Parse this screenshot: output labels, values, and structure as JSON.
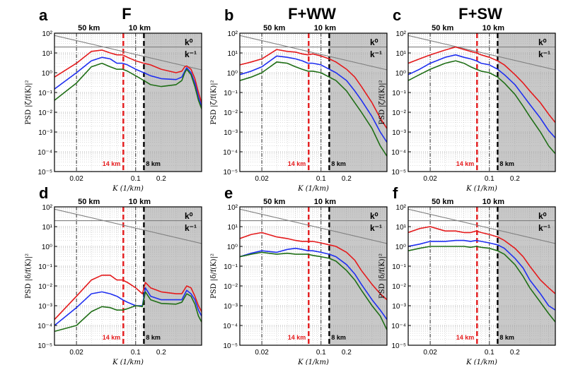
{
  "figure": {
    "colors": {
      "red": "#e41a1c",
      "blue": "#1f2ff0",
      "green": "#1f6e16",
      "ref": "#808080",
      "shade": "#c8c8c8"
    }
  },
  "chart_data": [
    {
      "type": "line",
      "panel": "a",
      "title": "F",
      "xlabel": "K (1/km)",
      "ylabel": "PSD |ζ/f(K)|²",
      "xscale": "log",
      "yscale": "log",
      "xlim": [
        0.011,
        0.6
      ],
      "ylim": [
        1e-05,
        100
      ],
      "xticks": [
        "0.02",
        "0.1",
        "0.2"
      ],
      "yticks": [
        "10⁻⁵",
        "10⁻⁴",
        "10⁻³",
        "10⁻²",
        "10⁻¹",
        "10⁰",
        "10¹",
        "10²"
      ],
      "top_labels": [
        "50 km",
        "10 km"
      ],
      "mark_labels": [
        "14 km",
        "8 km"
      ],
      "legend": [
        "k⁰",
        "k⁻¹"
      ],
      "shaded_from": 0.125,
      "series": [
        {
          "color": "red",
          "x": [
            0.011,
            0.02,
            0.03,
            0.04,
            0.05,
            0.06,
            0.07,
            0.08,
            0.1,
            0.125,
            0.15,
            0.2,
            0.3,
            0.35,
            0.38,
            0.4,
            0.45,
            0.5,
            0.55,
            0.6
          ],
          "y": [
            0.6,
            3,
            12,
            14,
            10,
            8,
            8,
            6,
            4,
            3,
            2.5,
            1.5,
            1.0,
            1.2,
            2.0,
            2.2,
            1.5,
            0.5,
            0.1,
            0.03
          ]
        },
        {
          "color": "blue",
          "x": [
            0.011,
            0.02,
            0.03,
            0.04,
            0.05,
            0.06,
            0.07,
            0.08,
            0.1,
            0.125,
            0.15,
            0.2,
            0.3,
            0.35,
            0.38,
            0.4,
            0.45,
            0.5,
            0.55,
            0.6
          ],
          "y": [
            0.15,
            1.0,
            4,
            6,
            5,
            3,
            3,
            2.5,
            1.5,
            1.0,
            0.7,
            0.5,
            0.45,
            0.6,
            1.2,
            1.8,
            1.0,
            0.3,
            0.06,
            0.02
          ]
        },
        {
          "color": "green",
          "x": [
            0.011,
            0.02,
            0.03,
            0.04,
            0.05,
            0.06,
            0.07,
            0.08,
            0.1,
            0.125,
            0.15,
            0.2,
            0.3,
            0.35,
            0.38,
            0.4,
            0.45,
            0.5,
            0.55,
            0.6
          ],
          "y": [
            0.04,
            0.3,
            2,
            3,
            2,
            1.5,
            1.5,
            1.2,
            0.7,
            0.4,
            0.25,
            0.2,
            0.25,
            0.4,
            1.0,
            1.5,
            0.8,
            0.2,
            0.04,
            0.015
          ]
        }
      ]
    },
    {
      "type": "line",
      "panel": "b",
      "title": "F+WW",
      "xlabel": "K (1/km)",
      "ylabel": "PSD |ζ/f(K)|²",
      "xscale": "log",
      "yscale": "log",
      "xlim": [
        0.011,
        0.6
      ],
      "ylim": [
        1e-05,
        100
      ],
      "xticks": [
        "0.02",
        "0.1",
        "0.2"
      ],
      "yticks": [
        "10⁻⁵",
        "10⁻⁴",
        "10⁻³",
        "10⁻²",
        "10⁻¹",
        "10⁰",
        "10¹",
        "10²"
      ],
      "top_labels": [
        "50 km",
        "10 km"
      ],
      "mark_labels": [
        "14 km",
        "8 km"
      ],
      "legend": [
        "k⁰",
        "k⁻¹"
      ],
      "shaded_from": 0.125,
      "series": [
        {
          "color": "red",
          "x": [
            0.011,
            0.015,
            0.02,
            0.03,
            0.04,
            0.05,
            0.06,
            0.07,
            0.08,
            0.1,
            0.125,
            0.15,
            0.2,
            0.25,
            0.3,
            0.4,
            0.5,
            0.6
          ],
          "y": [
            2.5,
            3.5,
            5,
            15,
            12,
            11,
            9,
            8,
            9,
            7,
            5,
            3.5,
            1.5,
            0.6,
            0.2,
            0.03,
            0.005,
            0.0015
          ]
        },
        {
          "color": "blue",
          "x": [
            0.011,
            0.015,
            0.02,
            0.03,
            0.04,
            0.05,
            0.06,
            0.07,
            0.08,
            0.1,
            0.125,
            0.15,
            0.2,
            0.25,
            0.3,
            0.4,
            0.5,
            0.6
          ],
          "y": [
            0.8,
            1.2,
            2,
            7,
            6,
            5,
            4,
            3,
            3,
            2.5,
            1.5,
            1.0,
            0.4,
            0.12,
            0.04,
            0.006,
            0.001,
            0.0003
          ]
        },
        {
          "color": "green",
          "x": [
            0.011,
            0.015,
            0.02,
            0.03,
            0.04,
            0.05,
            0.06,
            0.07,
            0.08,
            0.1,
            0.125,
            0.15,
            0.2,
            0.25,
            0.3,
            0.4,
            0.5,
            0.6
          ],
          "y": [
            0.4,
            0.6,
            1.0,
            3.5,
            3,
            2,
            1.5,
            1.2,
            1.2,
            1.0,
            0.6,
            0.4,
            0.12,
            0.03,
            0.01,
            0.0015,
            0.0002,
            6e-05
          ]
        }
      ]
    },
    {
      "type": "line",
      "panel": "c",
      "title": "F+SW",
      "xlabel": "K (1/km)",
      "ylabel": "PSD |ζ/f(K)|²",
      "xscale": "log",
      "yscale": "log",
      "xlim": [
        0.011,
        0.6
      ],
      "ylim": [
        1e-05,
        100
      ],
      "xticks": [
        "0.02",
        "0.1",
        "0.2"
      ],
      "yticks": [
        "10⁻⁵",
        "10⁻⁴",
        "10⁻³",
        "10⁻²",
        "10⁻¹",
        "10⁰",
        "10¹",
        "10²"
      ],
      "top_labels": [
        "50 km",
        "10 km"
      ],
      "mark_labels": [
        "14 km",
        "8 km"
      ],
      "legend": [
        "k⁰",
        "k⁻¹"
      ],
      "shaded_from": 0.125,
      "series": [
        {
          "color": "red",
          "x": [
            0.011,
            0.015,
            0.02,
            0.03,
            0.04,
            0.05,
            0.06,
            0.07,
            0.08,
            0.1,
            0.125,
            0.15,
            0.2,
            0.25,
            0.3,
            0.4,
            0.5,
            0.6
          ],
          "y": [
            3,
            5,
            8,
            14,
            20,
            15,
            12,
            10,
            8,
            6,
            4,
            2.5,
            0.8,
            0.3,
            0.12,
            0.03,
            0.008,
            0.003
          ]
        },
        {
          "color": "blue",
          "x": [
            0.011,
            0.015,
            0.02,
            0.03,
            0.04,
            0.05,
            0.06,
            0.07,
            0.08,
            0.1,
            0.125,
            0.15,
            0.2,
            0.25,
            0.3,
            0.4,
            0.5,
            0.6
          ],
          "y": [
            0.8,
            1.5,
            3,
            6,
            8,
            6,
            5,
            4,
            3,
            2.5,
            1.5,
            0.8,
            0.25,
            0.07,
            0.025,
            0.005,
            0.0012,
            0.0005
          ]
        },
        {
          "color": "green",
          "x": [
            0.011,
            0.015,
            0.02,
            0.03,
            0.04,
            0.05,
            0.06,
            0.07,
            0.08,
            0.1,
            0.125,
            0.15,
            0.2,
            0.25,
            0.3,
            0.4,
            0.5,
            0.6
          ],
          "y": [
            0.4,
            0.8,
            1.5,
            3,
            4,
            3,
            2,
            1.5,
            1.2,
            1.0,
            0.6,
            0.3,
            0.08,
            0.02,
            0.006,
            0.001,
            0.0002,
            8e-05
          ]
        }
      ]
    },
    {
      "type": "line",
      "panel": "d",
      "title": "",
      "xlabel": "K (1/km)",
      "ylabel": "PSD |δ/f(K)|²",
      "xscale": "log",
      "yscale": "log",
      "xlim": [
        0.011,
        0.6
      ],
      "ylim": [
        1e-05,
        100
      ],
      "xticks": [
        "0.02",
        "0.1",
        "0.2"
      ],
      "yticks": [
        "10⁻⁵",
        "10⁻⁴",
        "10⁻³",
        "10⁻²",
        "10⁻¹",
        "10⁰",
        "10¹",
        "10²"
      ],
      "top_labels": [
        "50 km",
        "10 km"
      ],
      "mark_labels": [
        "14 km",
        "8 km"
      ],
      "legend": [
        "k⁰",
        "k⁻¹"
      ],
      "shaded_from": 0.125,
      "series": [
        {
          "color": "red",
          "x": [
            0.011,
            0.02,
            0.03,
            0.04,
            0.05,
            0.06,
            0.07,
            0.08,
            0.1,
            0.12,
            0.13,
            0.15,
            0.2,
            0.3,
            0.35,
            0.4,
            0.45,
            0.5,
            0.55,
            0.6
          ],
          "y": [
            0.0002,
            0.003,
            0.02,
            0.035,
            0.035,
            0.02,
            0.02,
            0.015,
            0.008,
            0.004,
            0.015,
            0.008,
            0.005,
            0.004,
            0.004,
            0.01,
            0.008,
            0.003,
            0.001,
            0.0005
          ]
        },
        {
          "color": "blue",
          "x": [
            0.011,
            0.02,
            0.03,
            0.04,
            0.05,
            0.06,
            0.07,
            0.08,
            0.1,
            0.12,
            0.13,
            0.15,
            0.2,
            0.3,
            0.35,
            0.4,
            0.45,
            0.5,
            0.55,
            0.6
          ],
          "y": [
            0.0001,
            0.0008,
            0.004,
            0.005,
            0.004,
            0.003,
            0.002,
            0.0015,
            0.001,
            0.001,
            0.008,
            0.003,
            0.002,
            0.002,
            0.002,
            0.006,
            0.004,
            0.002,
            0.0006,
            0.0003
          ]
        },
        {
          "color": "green",
          "x": [
            0.011,
            0.02,
            0.03,
            0.04,
            0.05,
            0.06,
            0.07,
            0.08,
            0.1,
            0.12,
            0.13,
            0.15,
            0.2,
            0.3,
            0.35,
            0.4,
            0.45,
            0.5,
            0.55,
            0.6
          ],
          "y": [
            5e-05,
            0.0001,
            0.0005,
            0.0009,
            0.0008,
            0.0006,
            0.0006,
            0.0007,
            0.001,
            0.0009,
            0.005,
            0.002,
            0.0013,
            0.0012,
            0.0015,
            0.004,
            0.003,
            0.0012,
            0.0003,
            0.00015
          ]
        }
      ]
    },
    {
      "type": "line",
      "panel": "e",
      "title": "",
      "xlabel": "K (1/km)",
      "ylabel": "PSD |δ/f(K)|²",
      "xscale": "log",
      "yscale": "log",
      "xlim": [
        0.011,
        0.6
      ],
      "ylim": [
        1e-05,
        100
      ],
      "xticks": [
        "0.02",
        "0.1",
        "0.2"
      ],
      "yticks": [
        "10⁻⁵",
        "10⁻⁴",
        "10⁻³",
        "10⁻²",
        "10⁻¹",
        "10⁰",
        "10¹",
        "10²"
      ],
      "top_labels": [
        "50 km",
        "10 km"
      ],
      "mark_labels": [
        "14 km",
        "8 km"
      ],
      "legend": [
        "k⁰",
        "k⁻¹"
      ],
      "shaded_from": 0.125,
      "series": [
        {
          "color": "red",
          "x": [
            0.011,
            0.015,
            0.02,
            0.03,
            0.04,
            0.05,
            0.06,
            0.07,
            0.08,
            0.1,
            0.125,
            0.15,
            0.2,
            0.25,
            0.3,
            0.4,
            0.5,
            0.6
          ],
          "y": [
            2.5,
            4,
            5,
            3,
            2.5,
            2,
            1.8,
            1.8,
            1.8,
            1.5,
            1.2,
            1.0,
            0.5,
            0.2,
            0.06,
            0.012,
            0.004,
            0.002
          ]
        },
        {
          "color": "blue",
          "x": [
            0.011,
            0.015,
            0.02,
            0.03,
            0.04,
            0.05,
            0.06,
            0.07,
            0.08,
            0.1,
            0.125,
            0.15,
            0.2,
            0.25,
            0.3,
            0.4,
            0.5,
            0.6
          ],
          "y": [
            0.3,
            0.45,
            0.6,
            0.5,
            0.7,
            0.8,
            0.7,
            0.6,
            0.6,
            0.5,
            0.4,
            0.3,
            0.12,
            0.04,
            0.012,
            0.002,
            0.0006,
            0.0002
          ]
        },
        {
          "color": "green",
          "x": [
            0.011,
            0.015,
            0.02,
            0.03,
            0.04,
            0.05,
            0.06,
            0.07,
            0.08,
            0.1,
            0.125,
            0.15,
            0.2,
            0.25,
            0.3,
            0.4,
            0.5,
            0.6
          ],
          "y": [
            0.3,
            0.4,
            0.5,
            0.4,
            0.45,
            0.4,
            0.4,
            0.4,
            0.35,
            0.3,
            0.25,
            0.18,
            0.06,
            0.02,
            0.006,
            0.001,
            0.0003,
            6e-05
          ]
        }
      ]
    },
    {
      "type": "line",
      "panel": "f",
      "title": "",
      "xlabel": "K (1/km)",
      "ylabel": "PSD |δ/f(K)|²",
      "xscale": "log",
      "yscale": "log",
      "xlim": [
        0.011,
        0.6
      ],
      "ylim": [
        1e-05,
        100
      ],
      "xticks": [
        "0.02",
        "0.1",
        "0.2"
      ],
      "yticks": [
        "10⁻⁵",
        "10⁻⁴",
        "10⁻³",
        "10⁻²",
        "10⁻¹",
        "10⁰",
        "10¹",
        "10²"
      ],
      "top_labels": [
        "50 km",
        "10 km"
      ],
      "mark_labels": [
        "14 km",
        "8 km"
      ],
      "legend": [
        "k⁰",
        "k⁻¹"
      ],
      "shaded_from": 0.125,
      "series": [
        {
          "color": "red",
          "x": [
            0.011,
            0.015,
            0.02,
            0.03,
            0.04,
            0.05,
            0.06,
            0.07,
            0.08,
            0.1,
            0.125,
            0.15,
            0.2,
            0.25,
            0.3,
            0.4,
            0.5,
            0.6
          ],
          "y": [
            5,
            8,
            10,
            6,
            6,
            5,
            5,
            6,
            5,
            4,
            3,
            2,
            0.8,
            0.3,
            0.1,
            0.02,
            0.008,
            0.004
          ]
        },
        {
          "color": "blue",
          "x": [
            0.011,
            0.015,
            0.02,
            0.03,
            0.04,
            0.05,
            0.06,
            0.07,
            0.08,
            0.1,
            0.125,
            0.15,
            0.2,
            0.25,
            0.3,
            0.4,
            0.5,
            0.6
          ],
          "y": [
            1.0,
            1.3,
            1.8,
            1.8,
            2.0,
            2.0,
            1.8,
            2.0,
            1.8,
            1.5,
            1.2,
            0.8,
            0.25,
            0.08,
            0.02,
            0.004,
            0.001,
            0.0006
          ]
        },
        {
          "color": "green",
          "x": [
            0.011,
            0.015,
            0.02,
            0.03,
            0.04,
            0.05,
            0.06,
            0.07,
            0.08,
            0.1,
            0.125,
            0.15,
            0.2,
            0.25,
            0.3,
            0.4,
            0.5,
            0.6
          ],
          "y": [
            0.6,
            0.8,
            1.0,
            1.0,
            1.0,
            1.0,
            0.9,
            1.0,
            0.9,
            0.8,
            0.6,
            0.4,
            0.12,
            0.03,
            0.008,
            0.0015,
            0.0004,
            0.00015
          ]
        }
      ]
    }
  ]
}
